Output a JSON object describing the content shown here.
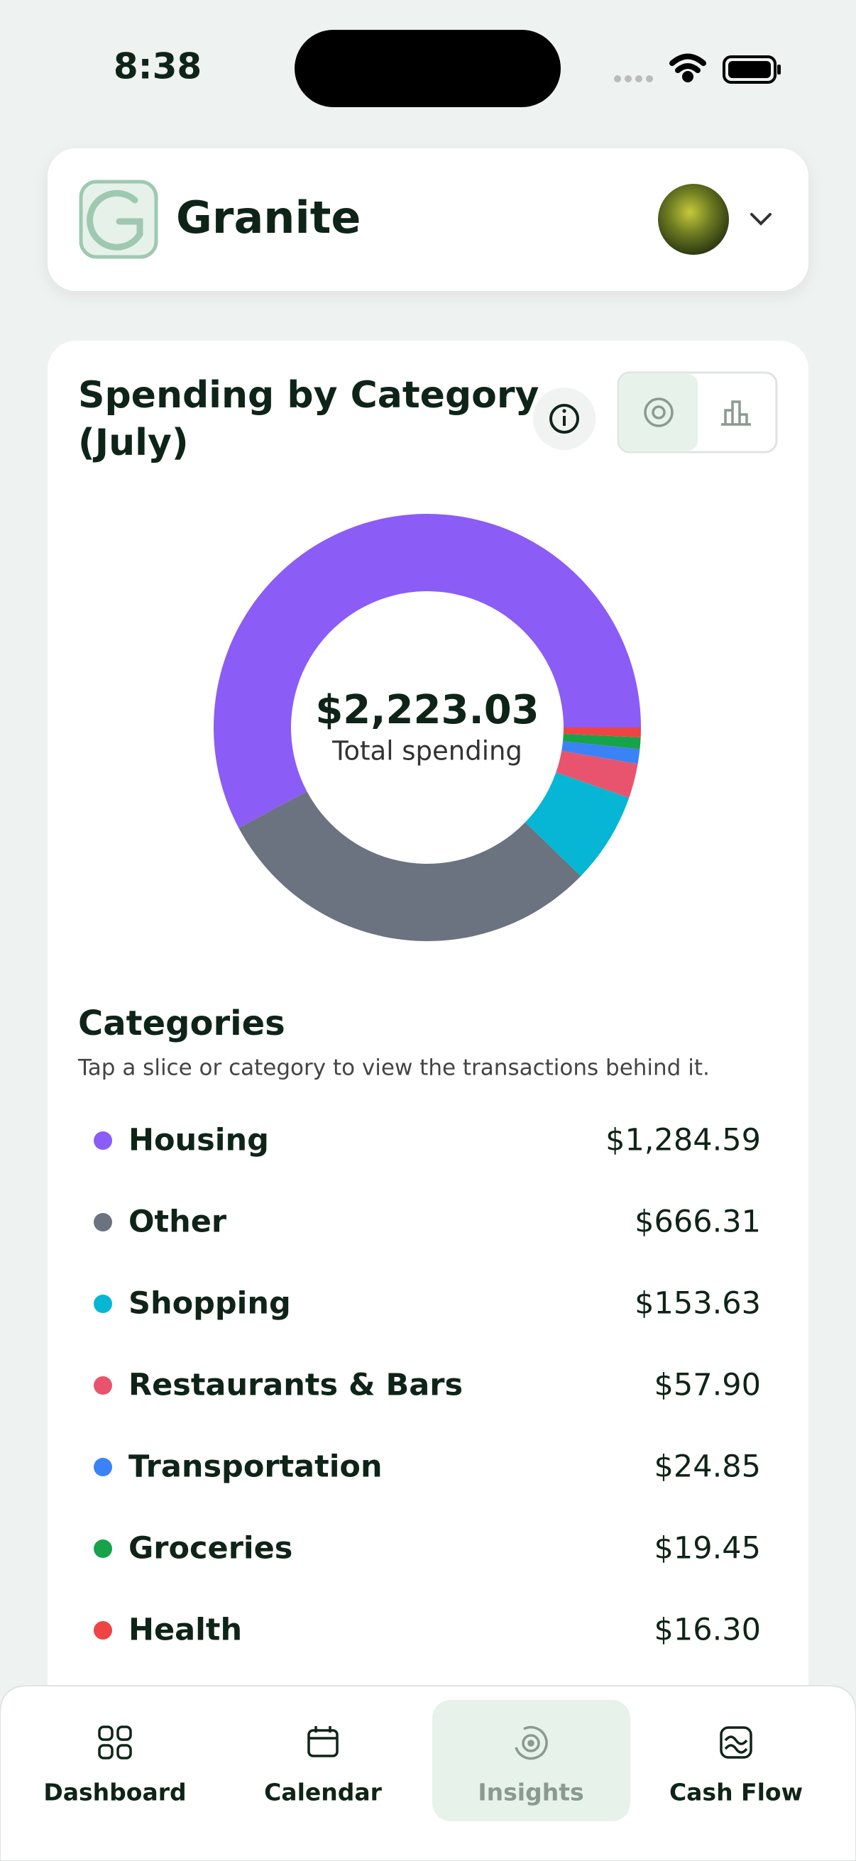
{
  "status_bar": {
    "time": "8:38"
  },
  "header": {
    "title": "Granite"
  },
  "card": {
    "title_lines": [
      "Spending by Category",
      "(July)"
    ],
    "total": "$2,223.03",
    "total_caption": "Total spending",
    "categories_title": "Categories",
    "categories_hint": "Tap a slice or category to view the transactions behind it.",
    "items": [
      {
        "name": "Housing",
        "value": 1284.59,
        "label": "$1,284.59",
        "color": "#8b5cf6"
      },
      {
        "name": "Other",
        "value": 666.31,
        "label": "$666.31",
        "color": "#6b7280"
      },
      {
        "name": "Shopping",
        "value": 153.63,
        "label": "$153.63",
        "color": "#06b6d4"
      },
      {
        "name": "Restaurants & Bars",
        "value": 57.9,
        "label": "$57.90",
        "color": "#e8546e"
      },
      {
        "name": "Transportation",
        "value": 24.85,
        "label": "$24.85",
        "color": "#3b82f6"
      },
      {
        "name": "Groceries",
        "value": 19.45,
        "label": "$19.45",
        "color": "#16a34a"
      },
      {
        "name": "Health",
        "value": 16.3,
        "label": "$16.30",
        "color": "#ef4444"
      }
    ]
  },
  "nav": {
    "items": [
      "Dashboard",
      "Calendar",
      "Insights",
      "Cash Flow"
    ],
    "active": 2
  }
}
